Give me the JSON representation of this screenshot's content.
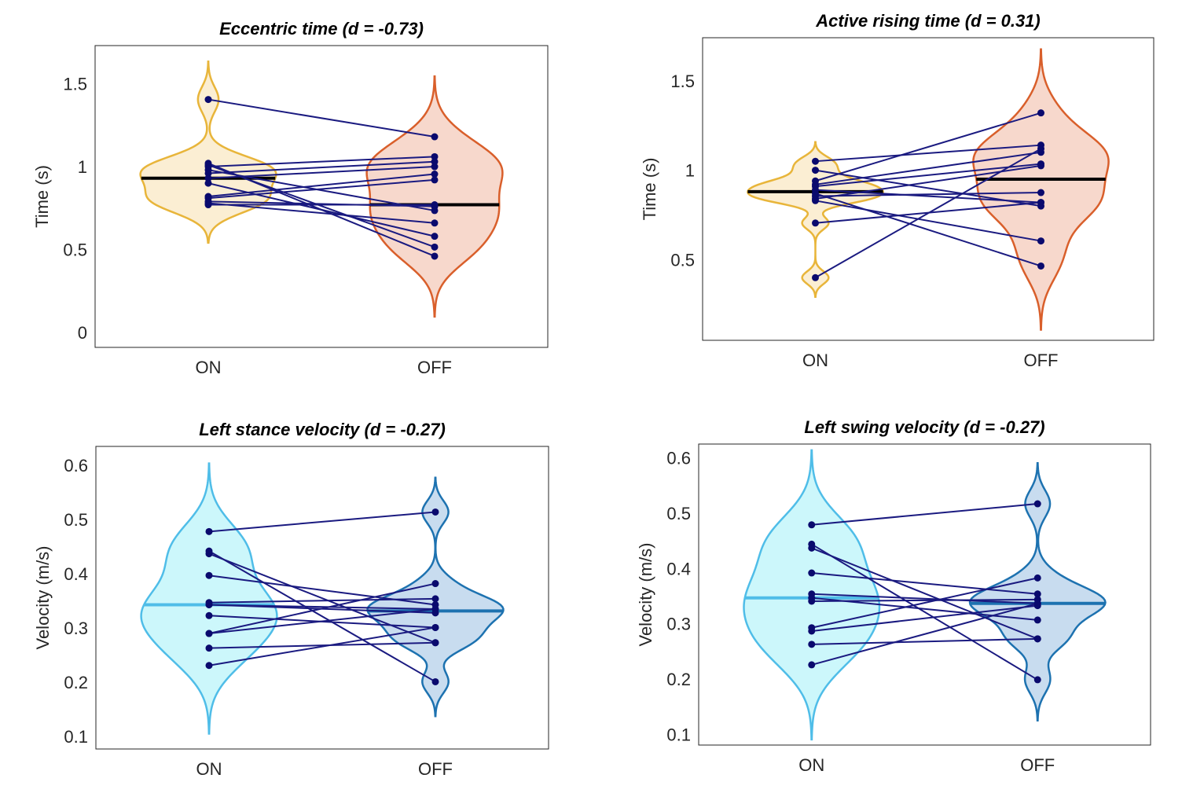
{
  "chart_data": [
    {
      "type": "violin",
      "title": "Eccentric time (d = -0.73)",
      "ylabel": "Time (s)",
      "categories": [
        "ON",
        "OFF"
      ],
      "series": [
        {
          "color": "#e8b53a",
          "fill": "#fbeed3",
          "values": [
            1.415,
            1.03,
            1.02,
            1.01,
            0.99,
            0.97,
            0.94,
            0.91,
            0.83,
            0.82,
            0.8,
            0.79,
            0.78
          ]
        },
        {
          "color": "#d95f2b",
          "fill": "#f7d8cc",
          "values": [
            1.19,
            0.47,
            0.525,
            1.07,
            0.745,
            1.04,
            1.01,
            0.59,
            0.965,
            0.93,
            0.77,
            0.67,
            0.78
          ]
        }
      ],
      "median_color": "#000000",
      "line_color": "#1a1a80",
      "point_color": "#0a0a6e",
      "ylim": [
        -0.08,
        1.74
      ],
      "yticks": [
        0,
        0.5,
        1,
        1.5
      ]
    },
    {
      "type": "violin",
      "title": "Active rising time (d = 0.31)",
      "ylabel": "Time (s)",
      "categories": [
        "ON",
        "OFF"
      ],
      "series": [
        {
          "color": "#e8b53a",
          "fill": "#fbeed3",
          "values": [
            1.06,
            1.01,
            0.95,
            0.93,
            0.92,
            0.9,
            0.88,
            0.865,
            0.85,
            0.84,
            0.715,
            0.41
          ]
        },
        {
          "color": "#d95f2b",
          "fill": "#f7d8cc",
          "values": [
            1.15,
            0.81,
            1.33,
            1.11,
            1.045,
            0.83,
            0.475,
            0.885,
            1.035,
            0.615,
            0.83,
            1.13
          ]
        }
      ],
      "median_color": "#000000",
      "line_color": "#1a1a80",
      "point_color": "#0a0a6e",
      "ylim": [
        0.06,
        1.75
      ],
      "yticks": [
        0.5,
        1,
        1.5
      ]
    },
    {
      "type": "violin",
      "title": "Left stance velocity (d = -0.27)",
      "ylabel": "Velocity (m/s)",
      "categories": [
        "ON",
        "OFF"
      ],
      "series": [
        {
          "color": "#4fbde8",
          "fill": "#ccf7fb",
          "values": [
            0.481,
            0.445,
            0.44,
            0.4,
            0.35,
            0.346,
            0.346,
            0.326,
            0.293,
            0.293,
            0.266,
            0.234
          ]
        },
        {
          "color": "#1d72b0",
          "fill": "#c8dcef",
          "values": [
            0.517,
            0.204,
            0.276,
            0.346,
            0.357,
            0.338,
            0.331,
            0.304,
            0.385,
            0.338,
            0.276,
            0.304
          ]
        }
      ],
      "median_color": "series",
      "line_color": "#1a1a80",
      "point_color": "#0a0a6e",
      "ylim": [
        0.08,
        0.638
      ],
      "yticks": [
        0.1,
        0.2,
        0.3,
        0.4,
        0.5,
        0.6
      ]
    },
    {
      "type": "violin",
      "title": "Left swing velocity (d = -0.27)",
      "ylabel": "Velocity (m/s)",
      "categories": [
        "ON",
        "OFF"
      ],
      "series": [
        {
          "color": "#4fbde8",
          "fill": "#ccf7fb",
          "values": [
            0.482,
            0.447,
            0.44,
            0.395,
            0.357,
            0.35,
            0.344,
            0.296,
            0.29,
            0.266,
            0.229
          ]
        },
        {
          "color": "#1d72b0",
          "fill": "#c8dcef",
          "values": [
            0.52,
            0.202,
            0.276,
            0.357,
            0.34,
            0.31,
            0.347,
            0.386,
            0.336,
            0.276,
            0.34
          ]
        }
      ],
      "median_color": "series",
      "line_color": "#1a1a80",
      "point_color": "#0a0a6e",
      "ylim": [
        0.084,
        0.628
      ],
      "yticks": [
        0.1,
        0.2,
        0.3,
        0.4,
        0.5,
        0.6
      ]
    }
  ]
}
